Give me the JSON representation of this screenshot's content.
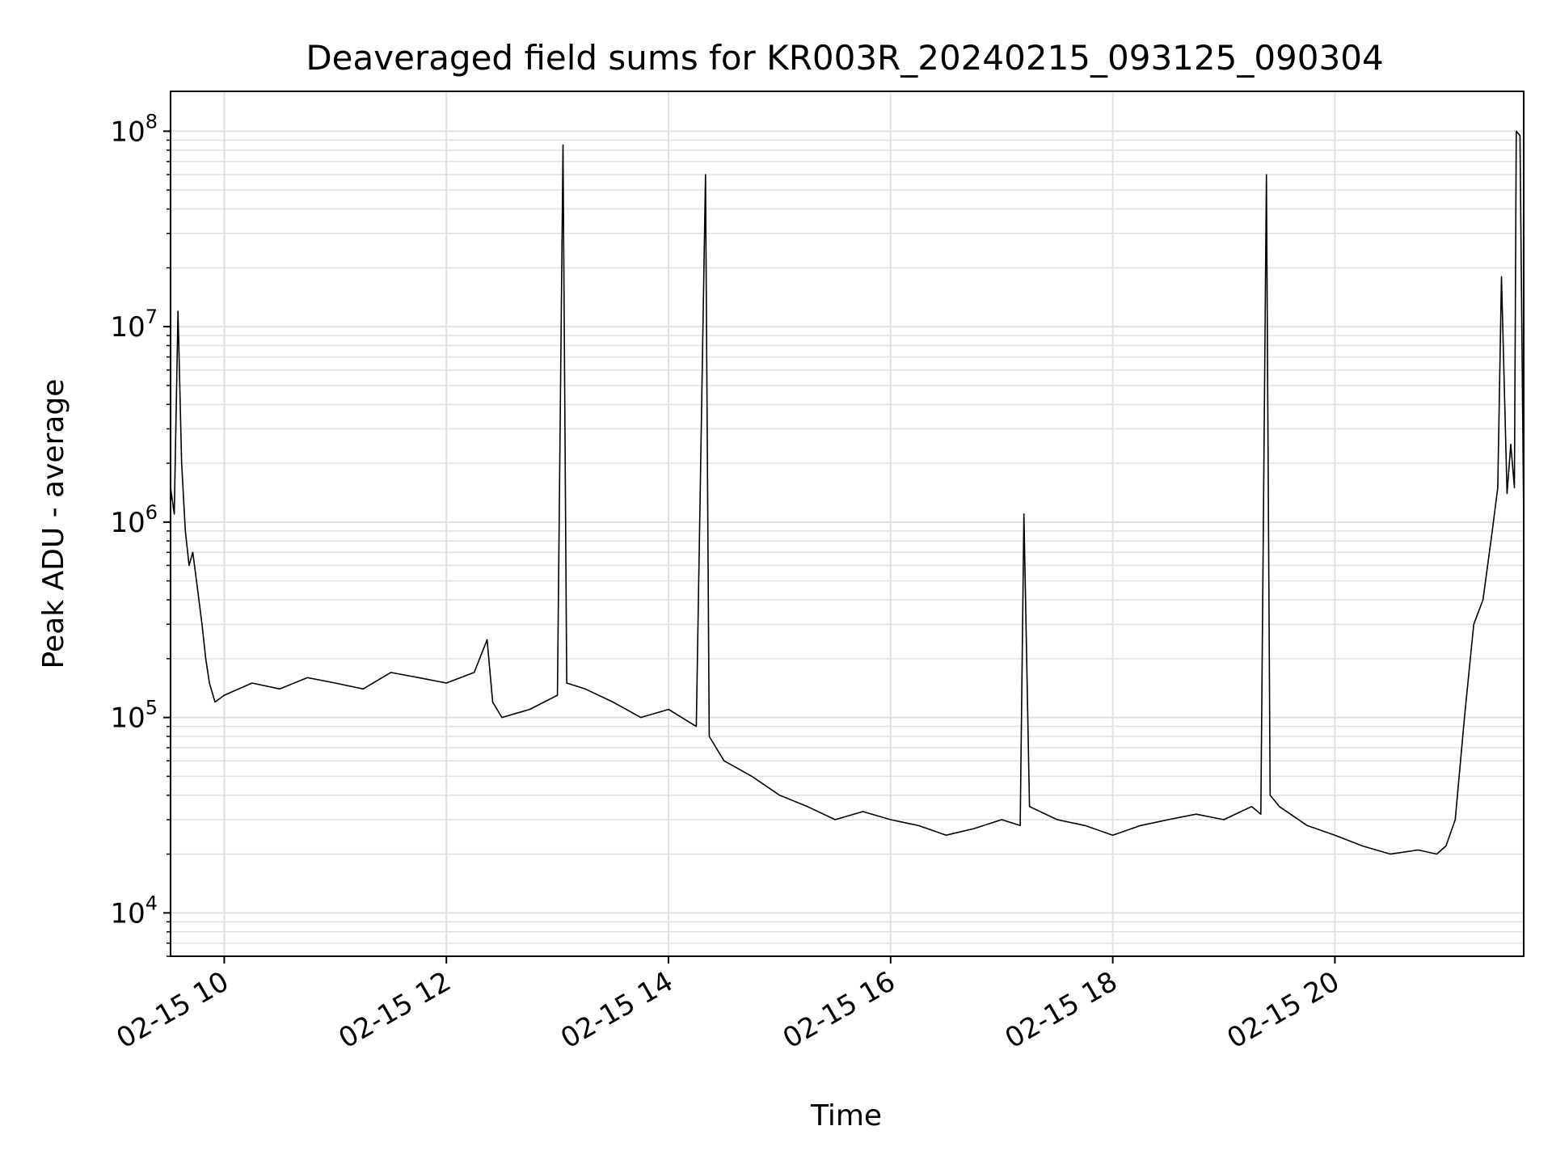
{
  "chart_data": {
    "type": "line",
    "title": "Deaveraged field sums for KR003R_20240215_093125_090304",
    "xlabel": "Time",
    "ylabel": "Peak ADU - average",
    "yscale": "log",
    "ylim": [
      6000,
      160000000
    ],
    "xlim": [
      "02-15 09:31",
      "02-15 21:42"
    ],
    "grid": true,
    "line_color": "#000000",
    "grid_color": "#e0e0e0",
    "x_ticks": [
      {
        "time": "02-15 10:00",
        "label": "02-15 10"
      },
      {
        "time": "02-15 12:00",
        "label": "02-15 12"
      },
      {
        "time": "02-15 14:00",
        "label": "02-15 14"
      },
      {
        "time": "02-15 16:00",
        "label": "02-15 16"
      },
      {
        "time": "02-15 18:00",
        "label": "02-15 18"
      },
      {
        "time": "02-15 20:00",
        "label": "02-15 20"
      }
    ],
    "y_ticks": [
      {
        "value": 10000,
        "base": "10",
        "exp": "4"
      },
      {
        "value": 100000,
        "base": "10",
        "exp": "5"
      },
      {
        "value": 1000000,
        "base": "10",
        "exp": "6"
      },
      {
        "value": 10000000,
        "base": "10",
        "exp": "7"
      },
      {
        "value": 100000000,
        "base": "10",
        "exp": "8"
      }
    ],
    "series": [
      {
        "approximate": true,
        "x": [
          "02-15 09:31",
          "02-15 09:33",
          "02-15 09:35",
          "02-15 09:37",
          "02-15 09:39",
          "02-15 09:41",
          "02-15 09:43",
          "02-15 09:45",
          "02-15 09:48",
          "02-15 09:50",
          "02-15 09:52",
          "02-15 09:55",
          "02-15 10:00",
          "02-15 10:15",
          "02-15 10:30",
          "02-15 10:45",
          "02-15 11:00",
          "02-15 11:15",
          "02-15 11:30",
          "02-15 11:45",
          "02-15 12:00",
          "02-15 12:15",
          "02-15 12:22",
          "02-15 12:25",
          "02-15 12:30",
          "02-15 12:45",
          "02-15 13:00",
          "02-15 13:03",
          "02-15 13:05",
          "02-15 13:15",
          "02-15 13:30",
          "02-15 13:45",
          "02-15 14:00",
          "02-15 14:15",
          "02-15 14:20",
          "02-15 14:22",
          "02-15 14:30",
          "02-15 14:45",
          "02-15 15:00",
          "02-15 15:15",
          "02-15 15:30",
          "02-15 15:45",
          "02-15 16:00",
          "02-15 16:15",
          "02-15 16:30",
          "02-15 16:45",
          "02-15 17:00",
          "02-15 17:10",
          "02-15 17:12",
          "02-15 17:15",
          "02-15 17:30",
          "02-15 17:45",
          "02-15 18:00",
          "02-15 18:15",
          "02-15 18:30",
          "02-15 18:45",
          "02-15 19:00",
          "02-15 19:15",
          "02-15 19:20",
          "02-15 19:23",
          "02-15 19:25",
          "02-15 19:30",
          "02-15 19:45",
          "02-15 20:00",
          "02-15 20:15",
          "02-15 20:30",
          "02-15 20:45",
          "02-15 20:55",
          "02-15 21:00",
          "02-15 21:05",
          "02-15 21:10",
          "02-15 21:15",
          "02-15 21:20",
          "02-15 21:25",
          "02-15 21:28",
          "02-15 21:30",
          "02-15 21:33",
          "02-15 21:35",
          "02-15 21:37",
          "02-15 21:38",
          "02-15 21:40",
          "02-15 21:42"
        ],
        "y": [
          1500000,
          1100000,
          12000000,
          2000000,
          900000,
          600000,
          700000,
          500000,
          300000,
          200000,
          150000,
          120000,
          130000,
          150000,
          140000,
          160000,
          150000,
          140000,
          170000,
          160000,
          150000,
          170000,
          250000,
          120000,
          100000,
          110000,
          130000,
          85000000,
          150000,
          140000,
          120000,
          100000,
          110000,
          90000,
          60000000,
          80000,
          60000,
          50000,
          40000,
          35000,
          30000,
          33000,
          30000,
          28000,
          25000,
          27000,
          30000,
          28000,
          1100000,
          35000,
          30000,
          28000,
          25000,
          28000,
          30000,
          32000,
          30000,
          35000,
          32000,
          60000000,
          40000,
          35000,
          28000,
          25000,
          22000,
          20000,
          21000,
          20000,
          22000,
          30000,
          100000,
          300000,
          400000,
          900000,
          1500000,
          18000000,
          1400000,
          2500000,
          1500000,
          100000000,
          95000000,
          1000000
        ]
      }
    ]
  }
}
